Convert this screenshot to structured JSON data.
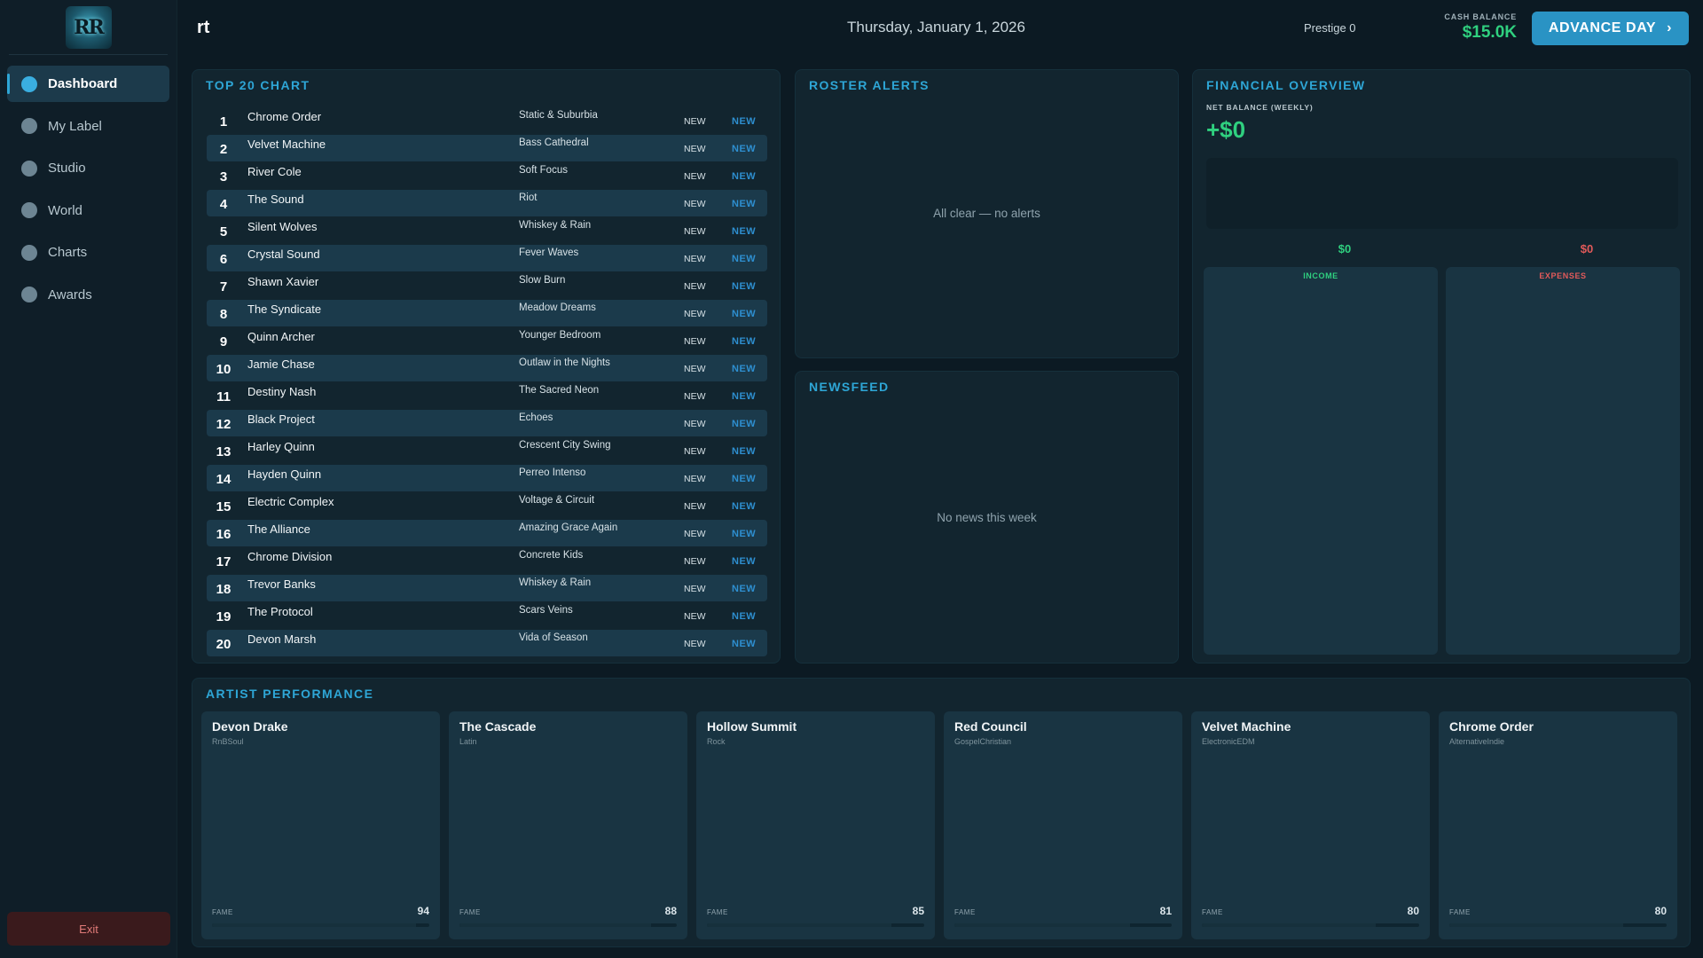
{
  "app": {
    "logo_text": "RR",
    "page_title": "rt",
    "date": "Thursday, January 1, 2026",
    "prestige": "Prestige 0",
    "cash_label": "CASH BALANCE",
    "cash_value": "$15.0K",
    "advance_label": "ADVANCE DAY",
    "advance_icon": "chevron-right-icon"
  },
  "sidebar": {
    "items": [
      {
        "label": "Dashboard",
        "icon": "dashboard-icon",
        "active": true
      },
      {
        "label": "My Label",
        "icon": "label-icon",
        "active": false
      },
      {
        "label": "Studio",
        "icon": "studio-icon",
        "active": false
      },
      {
        "label": "World",
        "icon": "world-icon",
        "active": false
      },
      {
        "label": "Charts",
        "icon": "charts-icon",
        "active": false
      },
      {
        "label": "Awards",
        "icon": "awards-icon",
        "active": false
      }
    ],
    "exit_label": "Exit"
  },
  "top_chart": {
    "title": "TOP 20 CHART",
    "rows": [
      {
        "rank": "1",
        "artist": "Chrome Order",
        "song": "Static & Suburbia",
        "status": "NEW",
        "change": "NEW"
      },
      {
        "rank": "2",
        "artist": "Velvet Machine",
        "song": "Bass Cathedral",
        "status": "NEW",
        "change": "NEW"
      },
      {
        "rank": "3",
        "artist": "River Cole",
        "song": "Soft Focus",
        "status": "NEW",
        "change": "NEW"
      },
      {
        "rank": "4",
        "artist": "The Sound",
        "song": "Riot",
        "status": "NEW",
        "change": "NEW"
      },
      {
        "rank": "5",
        "artist": "Silent Wolves",
        "song": "Whiskey & Rain",
        "status": "NEW",
        "change": "NEW"
      },
      {
        "rank": "6",
        "artist": "Crystal Sound",
        "song": "Fever Waves",
        "status": "NEW",
        "change": "NEW"
      },
      {
        "rank": "7",
        "artist": "Shawn Xavier",
        "song": "Slow Burn",
        "status": "NEW",
        "change": "NEW"
      },
      {
        "rank": "8",
        "artist": "The Syndicate",
        "song": "Meadow Dreams",
        "status": "NEW",
        "change": "NEW"
      },
      {
        "rank": "9",
        "artist": "Quinn Archer",
        "song": "Younger Bedroom",
        "status": "NEW",
        "change": "NEW"
      },
      {
        "rank": "10",
        "artist": "Jamie Chase",
        "song": "Outlaw in the Nights",
        "status": "NEW",
        "change": "NEW"
      },
      {
        "rank": "11",
        "artist": "Destiny Nash",
        "song": "The Sacred Neon",
        "status": "NEW",
        "change": "NEW"
      },
      {
        "rank": "12",
        "artist": "Black Project",
        "song": "Echoes",
        "status": "NEW",
        "change": "NEW"
      },
      {
        "rank": "13",
        "artist": "Harley Quinn",
        "song": "Crescent City Swing",
        "status": "NEW",
        "change": "NEW"
      },
      {
        "rank": "14",
        "artist": "Hayden Quinn",
        "song": "Perreo Intenso",
        "status": "NEW",
        "change": "NEW"
      },
      {
        "rank": "15",
        "artist": "Electric Complex",
        "song": "Voltage & Circuit",
        "status": "NEW",
        "change": "NEW"
      },
      {
        "rank": "16",
        "artist": "The Alliance",
        "song": "Amazing Grace Again",
        "status": "NEW",
        "change": "NEW"
      },
      {
        "rank": "17",
        "artist": "Chrome Division",
        "song": "Concrete Kids",
        "status": "NEW",
        "change": "NEW"
      },
      {
        "rank": "18",
        "artist": "Trevor Banks",
        "song": "Whiskey & Rain",
        "status": "NEW",
        "change": "NEW"
      },
      {
        "rank": "19",
        "artist": "The Protocol",
        "song": "Scars Veins",
        "status": "NEW",
        "change": "NEW"
      },
      {
        "rank": "20",
        "artist": "Devon Marsh",
        "song": "Vida of Season",
        "status": "NEW",
        "change": "NEW"
      }
    ]
  },
  "roster_alerts": {
    "title": "ROSTER ALERTS",
    "empty": "All clear — no alerts"
  },
  "newsfeed": {
    "title": "NEWSFEED",
    "empty": "No news this week"
  },
  "financial": {
    "title": "FINANCIAL OVERVIEW",
    "net_label": "NET BALANCE (WEEKLY)",
    "net_value": "+$0",
    "income_value": "$0",
    "expense_value": "$0",
    "income_label": "INCOME",
    "expense_label": "EXPENSES"
  },
  "performance": {
    "title": "ARTIST PERFORMANCE",
    "fame_label": "FAME",
    "artists": [
      {
        "name": "Devon Drake",
        "genre": "RnBSoul",
        "fame": "94"
      },
      {
        "name": "The Cascade",
        "genre": "Latin",
        "fame": "88"
      },
      {
        "name": "Hollow Summit",
        "genre": "Rock",
        "fame": "85"
      },
      {
        "name": "Red Council",
        "genre": "GospelChristian",
        "fame": "81"
      },
      {
        "name": "Velvet Machine",
        "genre": "ElectronicEDM",
        "fame": "80"
      },
      {
        "name": "Chrome Order",
        "genre": "AlternativeIndie",
        "fame": "80"
      }
    ]
  },
  "colors": {
    "accent": "#2ea6d6",
    "positive": "#2fd07f",
    "negative": "#e25a5a",
    "background": "#0c1a23",
    "panel": "#12252f"
  }
}
